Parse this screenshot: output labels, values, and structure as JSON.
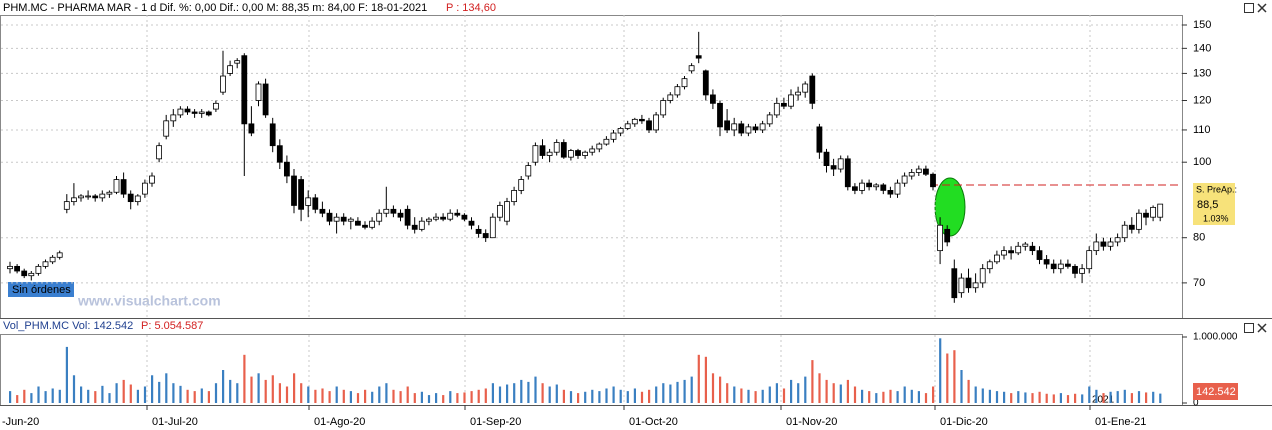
{
  "chart_data": {
    "type": "candlestick",
    "title": "PHM.MC - PHARMA MAR -  1 d  Dif. %: 0,00  Dif.: 0,00  M: 88,35  m: 84,00  F: 18-01-2021",
    "title_note": "P : 134,60",
    "order_status": "Sin órdenes",
    "watermark": "www.visualchart.com",
    "price_tag": {
      "label": "S. PreAp.:",
      "value": "88,5",
      "change": "1.03%"
    },
    "log": true,
    "ylim": [
      63.1,
      154.5
    ],
    "yticks": [
      70,
      80,
      100,
      110,
      120,
      130,
      140,
      150
    ],
    "hline": 93.5,
    "colors": {
      "up": "#ffffff",
      "down": "#000000",
      "volume_up": "#3a7fc1",
      "volume_down": "#e8604c",
      "hline": "#d22020"
    },
    "xlabels": [
      "-Jun-20",
      "01-Jul-20",
      "01-Ago-20",
      "01-Sep-20",
      "01-Oct-20",
      "01-Nov-20",
      "01-Dic-20",
      "01-Ene-21"
    ],
    "year_label": "2021",
    "ohlc": [
      [
        73,
        74.5,
        72,
        73.5
      ],
      [
        73.5,
        74,
        72,
        72.5
      ],
      [
        72.5,
        73,
        71,
        71.5
      ],
      [
        71.5,
        72.5,
        70.5,
        72
      ],
      [
        72,
        74,
        71.5,
        73.5
      ],
      [
        73.5,
        75,
        73,
        74.5
      ],
      [
        74.5,
        76,
        74,
        75.5
      ],
      [
        75.5,
        77,
        75,
        76.5
      ],
      [
        87,
        91,
        86,
        89
      ],
      [
        89,
        94,
        88,
        90
      ],
      [
        90,
        91,
        89,
        90.5
      ],
      [
        90.5,
        92,
        89.5,
        90.5
      ],
      [
        90.5,
        91,
        89,
        90
      ],
      [
        90,
        92,
        89,
        91
      ],
      [
        91,
        92,
        90,
        91.5
      ],
      [
        91.5,
        96,
        91,
        95
      ],
      [
        95,
        97,
        90,
        91
      ],
      [
        91,
        92,
        87,
        89
      ],
      [
        89,
        91,
        88,
        90.5
      ],
      [
        91,
        95,
        90,
        94
      ],
      [
        94,
        97,
        93,
        96
      ],
      [
        101,
        106,
        100,
        105
      ],
      [
        108,
        115,
        107,
        113
      ],
      [
        113,
        117,
        111,
        115
      ],
      [
        115,
        118,
        114,
        117
      ],
      [
        117,
        118,
        115,
        116
      ],
      [
        116,
        117,
        114,
        115.5
      ],
      [
        115.5,
        117,
        114,
        116
      ],
      [
        116,
        116.5,
        114.5,
        115
      ],
      [
        117,
        120,
        116,
        119
      ],
      [
        123,
        139,
        122,
        129
      ],
      [
        130,
        135,
        129,
        133
      ],
      [
        134,
        136,
        132,
        135
      ],
      [
        137,
        138,
        96,
        112
      ],
      [
        112,
        118,
        108,
        109
      ],
      [
        120,
        127,
        118,
        126
      ],
      [
        126,
        128,
        114,
        115
      ],
      [
        112,
        114,
        103,
        105
      ],
      [
        105,
        107,
        98,
        100
      ],
      [
        100,
        102,
        94,
        96
      ],
      [
        96,
        98,
        86,
        88
      ],
      [
        95,
        96,
        84,
        87
      ],
      [
        88,
        92,
        85,
        90
      ],
      [
        90,
        91,
        86,
        87
      ],
      [
        87,
        89,
        85,
        86
      ],
      [
        86,
        87,
        83,
        84
      ],
      [
        84,
        86,
        81,
        85
      ],
      [
        85,
        86,
        83,
        84
      ],
      [
        84,
        85,
        82,
        84.5
      ],
      [
        84,
        85,
        83,
        83
      ],
      [
        83,
        84,
        82,
        82.5
      ],
      [
        82.5,
        85,
        82,
        84
      ],
      [
        84,
        87,
        83,
        86
      ],
      [
        86,
        93,
        85,
        87
      ],
      [
        87,
        88,
        85,
        86
      ],
      [
        86,
        87,
        84,
        85
      ],
      [
        87,
        88,
        82,
        83
      ],
      [
        83,
        85,
        81,
        82
      ],
      [
        82,
        85,
        81.5,
        84
      ],
      [
        84,
        85,
        83,
        84.5
      ],
      [
        84.5,
        86,
        84,
        85
      ],
      [
        85,
        86,
        84,
        84.5
      ],
      [
        84.5,
        87,
        84,
        86
      ],
      [
        86,
        87,
        85,
        85.5
      ],
      [
        85.5,
        86,
        84,
        84.5
      ],
      [
        84,
        85,
        82,
        83
      ],
      [
        82,
        83,
        80,
        81
      ],
      [
        81,
        82,
        79,
        80
      ],
      [
        80,
        86,
        80,
        85
      ],
      [
        85,
        89,
        84,
        88
      ],
      [
        84,
        90,
        83,
        89
      ],
      [
        89,
        93,
        88,
        92
      ],
      [
        92,
        96,
        91,
        95
      ],
      [
        96,
        100,
        95,
        99
      ],
      [
        100,
        106,
        99,
        105
      ],
      [
        105,
        107,
        101,
        102
      ],
      [
        102,
        104,
        100,
        103
      ],
      [
        103,
        107,
        102,
        106
      ],
      [
        106,
        107,
        101,
        101.5
      ],
      [
        101.5,
        104,
        100.5,
        103.5
      ],
      [
        103.5,
        104,
        101,
        102
      ],
      [
        102,
        103.5,
        101,
        103
      ],
      [
        103,
        105,
        102,
        104
      ],
      [
        104,
        106,
        103,
        105.5
      ],
      [
        105.5,
        108,
        105,
        107
      ],
      [
        107,
        110,
        106,
        109
      ],
      [
        109,
        111,
        108,
        110.5
      ],
      [
        110.5,
        113,
        110,
        112
      ],
      [
        112,
        114,
        111,
        113.5
      ],
      [
        113.5,
        115,
        112,
        113
      ],
      [
        113,
        114,
        109,
        110
      ],
      [
        110,
        116,
        109,
        115
      ],
      [
        115,
        121,
        114,
        120
      ],
      [
        120,
        123,
        119,
        122
      ],
      [
        122,
        126,
        121,
        125
      ],
      [
        125,
        129,
        124,
        128
      ],
      [
        131,
        134,
        130,
        133
      ],
      [
        137,
        147,
        134,
        136
      ],
      [
        131,
        131.5,
        120,
        122
      ],
      [
        122,
        124,
        117,
        119
      ],
      [
        119,
        120,
        108,
        111
      ],
      [
        113,
        117,
        109,
        110
      ],
      [
        110,
        114,
        108,
        112
      ],
      [
        112,
        113,
        108,
        109
      ],
      [
        109,
        112,
        108,
        111
      ],
      [
        111,
        112,
        109,
        110
      ],
      [
        110,
        113,
        109,
        112
      ],
      [
        112,
        116,
        111,
        115
      ],
      [
        115,
        121,
        114,
        119
      ],
      [
        119,
        121,
        117,
        118
      ],
      [
        118,
        124,
        117,
        122
      ],
      [
        122,
        125,
        120,
        123
      ],
      [
        123,
        127,
        121,
        126
      ],
      [
        129,
        130,
        117,
        119
      ],
      [
        111,
        112,
        101,
        103
      ],
      [
        103,
        104,
        97,
        99
      ],
      [
        99,
        101,
        96,
        98
      ],
      [
        98,
        102,
        97,
        101
      ],
      [
        101,
        102,
        92,
        93
      ],
      [
        93,
        94,
        91,
        92
      ],
      [
        92,
        95,
        91,
        94
      ],
      [
        94,
        95,
        92,
        93
      ],
      [
        93,
        94,
        92,
        93.5
      ],
      [
        93.5,
        94,
        91,
        92
      ],
      [
        92,
        93,
        90,
        91
      ],
      [
        91,
        95,
        90,
        94
      ],
      [
        94,
        97,
        93,
        96
      ],
      [
        96,
        98,
        95,
        97
      ],
      [
        97,
        99,
        96,
        98
      ],
      [
        98,
        99,
        96,
        96.5
      ],
      [
        96.5,
        97,
        92,
        93
      ],
      [
        77,
        85,
        74,
        83
      ],
      [
        82,
        83,
        78,
        79
      ],
      [
        73,
        75,
        66,
        67
      ],
      [
        68,
        72,
        67,
        71
      ],
      [
        71,
        73,
        68,
        69
      ],
      [
        69,
        72,
        68,
        70
      ],
      [
        70,
        74,
        69,
        73
      ],
      [
        73,
        75,
        72,
        74.5
      ],
      [
        74.5,
        77,
        74,
        76
      ],
      [
        76,
        78,
        75,
        77
      ],
      [
        77,
        78,
        75,
        76.5
      ],
      [
        76.5,
        79,
        76,
        78
      ],
      [
        78,
        79,
        77,
        78.5
      ],
      [
        78,
        79,
        76,
        77
      ],
      [
        77,
        78,
        74,
        75
      ],
      [
        75,
        76,
        73,
        74
      ],
      [
        74,
        75,
        72,
        73
      ],
      [
        73,
        75,
        72,
        74
      ],
      [
        74,
        75,
        73,
        73.5
      ],
      [
        73.5,
        74,
        71,
        72
      ],
      [
        72,
        74,
        70,
        73
      ],
      [
        73,
        78,
        72,
        77
      ],
      [
        77,
        81,
        76,
        79
      ],
      [
        79,
        80,
        77,
        78
      ],
      [
        78,
        80,
        77,
        79
      ],
      [
        79,
        81,
        78,
        80
      ],
      [
        80,
        84,
        79,
        83
      ],
      [
        83,
        85,
        81,
        82
      ],
      [
        82,
        87,
        81,
        86
      ],
      [
        86,
        87,
        83,
        85
      ],
      [
        85,
        88,
        84,
        87.5
      ],
      [
        85,
        88.35,
        84,
        88.35
      ]
    ],
    "volume_title": "Vol_PHM.MC  Vol: 142.542",
    "volume_note": "P: 5.054.587",
    "volume_last_label": "142.542",
    "volume_ylim": [
      0,
      1000000
    ],
    "volume_ticks": [
      {
        "value": 1000000,
        "label": "1.000.000"
      },
      0
    ],
    "volumes": [
      180000,
      120000,
      200000,
      150000,
      250000,
      180000,
      220000,
      200000,
      850000,
      420000,
      250000,
      200000,
      180000,
      260000,
      150000,
      300000,
      350000,
      280000,
      200000,
      250000,
      420000,
      320000,
      450000,
      300000,
      260000,
      200000,
      180000,
      220000,
      180000,
      300000,
      500000,
      350000,
      300000,
      730000,
      400000,
      450000,
      350000,
      420000,
      300000,
      250000,
      450000,
      300000,
      250000,
      200000,
      220000,
      180000,
      250000,
      200000,
      180000,
      150000,
      200000,
      170000,
      250000,
      300000,
      200000,
      180000,
      250000,
      150000,
      170000,
      120000,
      150000,
      120000,
      180000,
      150000,
      160000,
      180000,
      200000,
      220000,
      300000,
      250000,
      280000,
      300000,
      350000,
      320000,
      400000,
      300000,
      250000,
      280000,
      200000,
      180000,
      150000,
      170000,
      200000,
      180000,
      220000,
      250000,
      200000,
      180000,
      220000,
      170000,
      200000,
      250000,
      300000,
      280000,
      320000,
      350000,
      400000,
      730000,
      700000,
      450000,
      400000,
      300000,
      250000,
      220000,
      200000,
      180000,
      200000,
      250000,
      300000,
      220000,
      350000,
      300000,
      400000,
      650000,
      450000,
      350000,
      300000,
      280000,
      350000,
      250000,
      200000,
      180000,
      150000,
      170000,
      200000,
      180000,
      250000,
      200000,
      180000,
      150000,
      250000,
      980000,
      750000,
      800000,
      500000,
      350000,
      250000,
      220000,
      200000,
      180000,
      170000,
      150000,
      180000,
      160000,
      150000,
      170000,
      140000,
      130000,
      150000,
      120000,
      140000,
      130000,
      250000,
      200000,
      150000,
      170000,
      180000,
      200000,
      150000,
      180000,
      160000,
      170000,
      142542
    ]
  }
}
